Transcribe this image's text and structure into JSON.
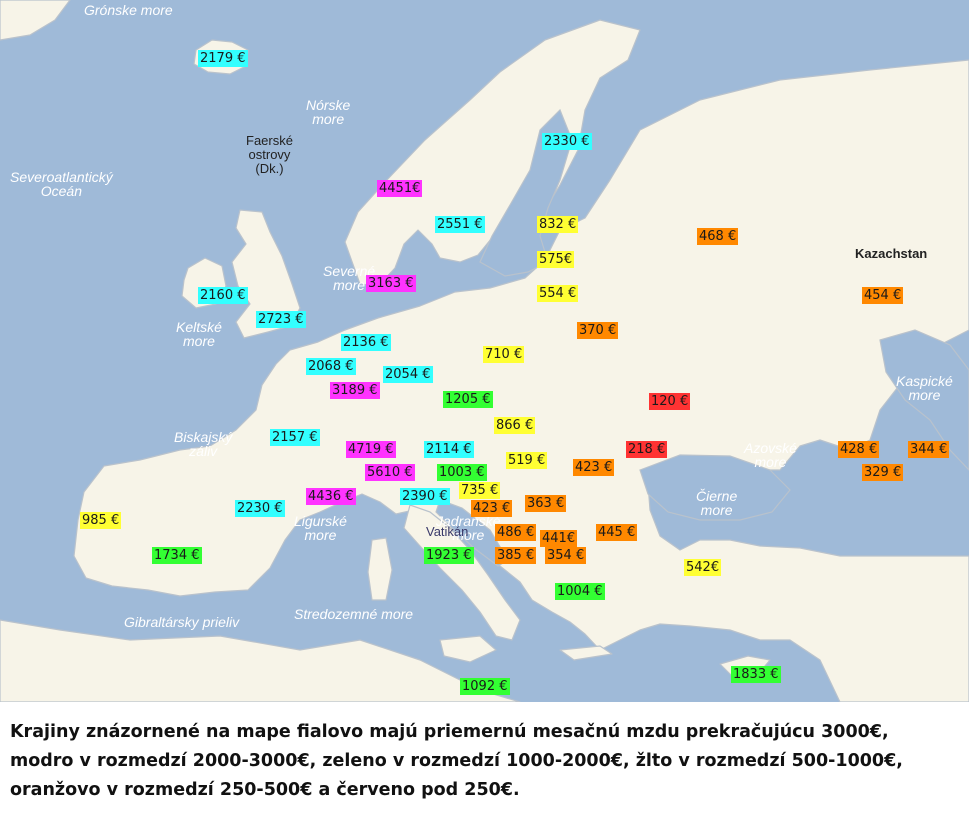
{
  "colors": {
    "sea": "#9fbad8",
    "land": "#f7f4e8",
    "purple": "#ff33ff",
    "blue": "#33ffff",
    "green": "#33ff33",
    "yellow": "#ffff33",
    "orange": "#ff8800",
    "red": "#ff3333"
  },
  "seas": [
    {
      "name": "greenland-sea",
      "text": "Grónske more"
    },
    {
      "name": "norwegian-sea",
      "text": "Nórske\nmore"
    },
    {
      "name": "north-atlantic",
      "text": "Severoatlantický\nOceán"
    },
    {
      "name": "north-sea",
      "text": "Severné\nmore"
    },
    {
      "name": "celtic-sea",
      "text": "Keltské\nmore"
    },
    {
      "name": "bay-of-biscay",
      "text": "Biskajský\nzáliv"
    },
    {
      "name": "ligurian-sea",
      "text": "Ligurské\nmore"
    },
    {
      "name": "adriatic-sea",
      "text": "Jadranské\nmore"
    },
    {
      "name": "gibraltar-strait",
      "text": "Gibraltársky prieliv"
    },
    {
      "name": "mediterranean-sea",
      "text": "Stredozemné more"
    },
    {
      "name": "black-sea",
      "text": "Čierne\nmore"
    },
    {
      "name": "azov-sea",
      "text": "Azovské\nmore"
    },
    {
      "name": "caspian-sea",
      "text": "Kaspické\nmore"
    }
  ],
  "lands": [
    {
      "name": "faroe-islands",
      "text": "Faerské\nostrovy\n(Dk.)"
    },
    {
      "name": "kazakhstan",
      "text": "Kazachstan"
    },
    {
      "name": "vatican",
      "text": "Vatikán"
    }
  ],
  "wages": [
    {
      "name": "wage-iceland",
      "text": "2179 €",
      "color": "blue"
    },
    {
      "name": "wage-finland",
      "text": "2330 €",
      "color": "blue"
    },
    {
      "name": "wage-norway",
      "text": "4451€",
      "color": "purple"
    },
    {
      "name": "wage-sweden",
      "text": "2551 €",
      "color": "blue"
    },
    {
      "name": "wage-estonia",
      "text": "832 €",
      "color": "yellow"
    },
    {
      "name": "wage-russia",
      "text": "468 €",
      "color": "orange"
    },
    {
      "name": "wage-latvia",
      "text": "575€",
      "color": "yellow"
    },
    {
      "name": "wage-kazakhstan",
      "text": "454 €",
      "color": "orange"
    },
    {
      "name": "wage-ireland",
      "text": "2160 €",
      "color": "blue"
    },
    {
      "name": "wage-denmark",
      "text": "3163 €",
      "color": "purple"
    },
    {
      "name": "wage-lithuania",
      "text": "554 €",
      "color": "yellow"
    },
    {
      "name": "wage-uk",
      "text": "2723 €",
      "color": "blue"
    },
    {
      "name": "wage-belarus",
      "text": "370 €",
      "color": "orange"
    },
    {
      "name": "wage-netherlands",
      "text": "2136 €",
      "color": "blue"
    },
    {
      "name": "wage-poland",
      "text": "710 €",
      "color": "yellow"
    },
    {
      "name": "wage-belgium",
      "text": "2068 €",
      "color": "blue"
    },
    {
      "name": "wage-germany",
      "text": "2054 €",
      "color": "blue"
    },
    {
      "name": "wage-luxembourg",
      "text": "3189 €",
      "color": "purple"
    },
    {
      "name": "wage-czechia",
      "text": "1205 €",
      "color": "green"
    },
    {
      "name": "wage-ukraine",
      "text": "120 €",
      "color": "red"
    },
    {
      "name": "wage-slovakia",
      "text": "866 €",
      "color": "yellow"
    },
    {
      "name": "wage-france",
      "text": "2157 €",
      "color": "blue"
    },
    {
      "name": "wage-liechtenstein",
      "text": "4719 €",
      "color": "purple"
    },
    {
      "name": "wage-austria",
      "text": "2114 €",
      "color": "blue"
    },
    {
      "name": "wage-moldova",
      "text": "218 €",
      "color": "red"
    },
    {
      "name": "wage-russia-south",
      "text": "428 €",
      "color": "orange"
    },
    {
      "name": "wage-azerbaijan",
      "text": "344 €",
      "color": "orange"
    },
    {
      "name": "wage-hungary",
      "text": "519 €",
      "color": "yellow"
    },
    {
      "name": "wage-romania",
      "text": "423 €",
      "color": "orange"
    },
    {
      "name": "wage-switzerland",
      "text": "5610 €",
      "color": "purple"
    },
    {
      "name": "wage-slovenia",
      "text": "1003 €",
      "color": "green"
    },
    {
      "name": "wage-georgia",
      "text": "329 €",
      "color": "orange"
    },
    {
      "name": "wage-croatia",
      "text": "735 €",
      "color": "yellow"
    },
    {
      "name": "wage-monaco",
      "text": "4436 €",
      "color": "purple"
    },
    {
      "name": "wage-san-marino",
      "text": "2390 €",
      "color": "blue"
    },
    {
      "name": "wage-serbia",
      "text": "363 €",
      "color": "orange"
    },
    {
      "name": "wage-bosnia",
      "text": "423 €",
      "color": "orange"
    },
    {
      "name": "wage-portugal",
      "text": "985 €",
      "color": "yellow"
    },
    {
      "name": "wage-andorra",
      "text": "2230 €",
      "color": "blue"
    },
    {
      "name": "wage-montenegro",
      "text": "486 €",
      "color": "orange"
    },
    {
      "name": "wage-kosovo",
      "text": "441€",
      "color": "orange"
    },
    {
      "name": "wage-bulgaria",
      "text": "445 €",
      "color": "orange"
    },
    {
      "name": "wage-spain",
      "text": "1734 €",
      "color": "green"
    },
    {
      "name": "wage-italy",
      "text": "1923 €",
      "color": "green"
    },
    {
      "name": "wage-albania",
      "text": "385 €",
      "color": "orange"
    },
    {
      "name": "wage-macedonia",
      "text": "354 €",
      "color": "orange"
    },
    {
      "name": "wage-turkey",
      "text": "542€",
      "color": "yellow"
    },
    {
      "name": "wage-greece",
      "text": "1004 €",
      "color": "green"
    },
    {
      "name": "wage-cyprus",
      "text": "1833 €",
      "color": "green"
    },
    {
      "name": "wage-malta",
      "text": "1092 €",
      "color": "green"
    }
  ],
  "caption": [
    "Krajiny znázornené na mape fialovo majú priemernú mesačnú mzdu prekračujúcu 3000€,",
    "modro v rozmedzí 2000-3000€, zeleno v rozmedzí 1000-2000€, žlto v rozmedzí 500-1000€,",
    "oranžovo v rozmedzí 250-500€ a červeno pod 250€."
  ]
}
